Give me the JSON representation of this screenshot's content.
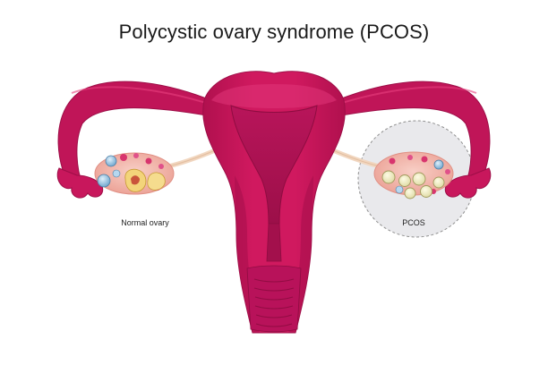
{
  "title": "Polycystic ovary syndrome (PCOS)",
  "labels": {
    "normal_ovary": "Normal ovary",
    "pcos": "PCOS"
  },
  "colors": {
    "uterus": "#c8155a",
    "uterus_shadow": "#a60f4a",
    "uterus_light": "#e0337a",
    "cavity": "#a81452",
    "ovary": "#f3b8ae",
    "ovary_edge": "#e79a8f",
    "follicle_red": "#d8356e",
    "cyst": "#f0eec0",
    "ligament": "#f1d6bf",
    "pcos_circle_fill": "#e8e8ea",
    "pcos_circle_stroke": "#8c8c8c"
  },
  "icons": [
    "uterus-illustration",
    "normal-ovary-illustration",
    "pcos-ovary-illustration"
  ]
}
